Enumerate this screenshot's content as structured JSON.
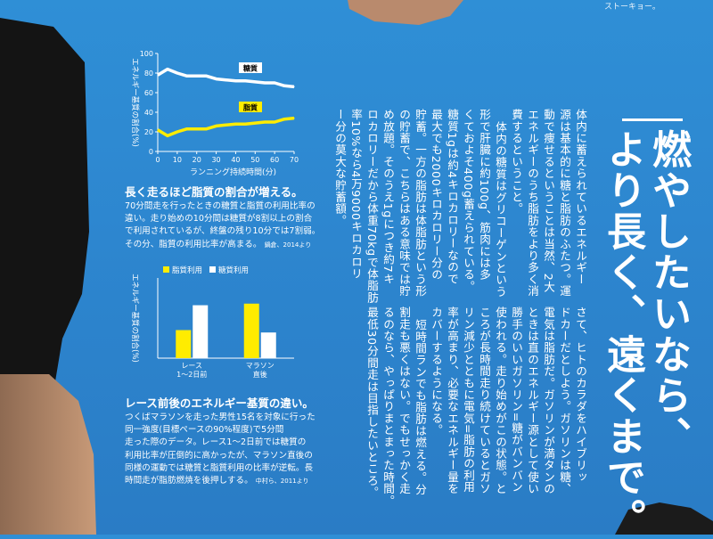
{
  "top_right_snippet": "ストーキョー。",
  "headline": {
    "line1": "燃やしたいなら、",
    "line2": "より長く、遠くまで。"
  },
  "body_columns": [
    "体内に蓄えられているエネルギー",
    "源は基本的に糖と脂肪のふたつ。運",
    "動で痩せるということは当然、2大",
    "エネルギーのうち脂肪をより多く消",
    "費するということ。",
    "体内の糖質はグリコーゲンという",
    "形で肝臓に約100g、筋肉には多",
    "くておよそ400g蓄えられている。",
    "糖質1gは約4キロカロリーなので",
    "最大でも2000キロカロリー分の",
    "貯蓄。一方の脂肪は体脂肪という形",
    "の貯蓄で、こちらはある意味では貯",
    "め放題。そのうえ1gにつき約7キ",
    "ロカロリーだから体重70kgで体脂肪",
    "率10%なら4万9000キロカロリ",
    "ー分の莫大な貯蓄額。",
    "さて、ヒトのカラダをハイブリッ",
    "ドカーだとしよう。ガソリンは糖、",
    "電気は脂肪だ。ガソリンが満タンの",
    "ときは直のエネルギー源として使い",
    "勝手のいいガソリン=糖がバンバン",
    "使われる。走り始めがこの状態。と",
    "ころが長時間走り続けているとガソ",
    "リン減少とともに電気=脂肪の利用",
    "率が高まり、必要なエネルギー量を",
    "カバーするようになる。",
    "短時間ランでも脂肪は燃える。分",
    "割走も悪くはない。でもせっかく走",
    "るのなら、やっぱりまとまった時間。",
    "最低30分間走は目指したいところ。"
  ],
  "chart_data": [
    {
      "type": "line",
      "ylabel": "エネルギー基質の割合(%)",
      "xlabel": "ランニング持続時間(分)",
      "x": [
        0,
        5,
        10,
        15,
        20,
        25,
        30,
        35,
        40,
        45,
        50,
        55,
        60,
        65,
        70
      ],
      "x_ticks": [
        "0",
        "10",
        "20",
        "30",
        "40",
        "50",
        "60",
        "70"
      ],
      "y_ticks": [
        "0",
        "20",
        "40",
        "60",
        "80",
        "100"
      ],
      "ylim": [
        0,
        100
      ],
      "xlim": [
        0,
        70
      ],
      "series": [
        {
          "name": "糖質",
          "color": "#ffffff",
          "values": [
            78,
            84,
            80,
            77,
            77,
            77,
            74,
            73,
            72,
            72,
            71,
            70,
            70,
            67,
            66
          ]
        },
        {
          "name": "脂質",
          "color": "#ffec00",
          "values": [
            22,
            16,
            20,
            23,
            23,
            23,
            26,
            27,
            28,
            28,
            29,
            30,
            30,
            33,
            34
          ]
        }
      ],
      "caption_title": "長く走るほど脂質の割合が増える。",
      "caption_lines": [
        "70分間走を行ったときの糖質と脂質の利用比率の",
        "違い。走り始めの10分間は糖質が8割以上の割合",
        "で利用されているが、終盤の残り10分では7割弱。",
        "その分、脂質の利用比率が高まる。"
      ],
      "caption_source": "鍋倉、2014より"
    },
    {
      "type": "bar",
      "ylabel": "エネルギー基質の割合(%)",
      "categories": [
        "レース\n1〜2日前",
        "マラソン\n直後"
      ],
      "category_lines": [
        [
          "レース",
          "1〜2日前"
        ],
        [
          "マラソン",
          "直後"
        ]
      ],
      "series": [
        {
          "name": "脂質利用",
          "color": "#ffec00",
          "values": [
            35,
            68
          ]
        },
        {
          "name": "糖質利用",
          "color": "#ffffff",
          "values": [
            66,
            32
          ]
        }
      ],
      "ylim": [
        0,
        100
      ],
      "legend": "top",
      "caption_title": "レース前後のエネルギー基質の違い。",
      "caption_lines": [
        "つくばマラソンを走った男性15名を対象に行った",
        "同一強度(目標ペースの90%程度)で5分間",
        "走った際のデータ。レース1〜2日前では糖質の",
        "利用比率が圧倒的に高かったが、マラソン直後の",
        "同様の運動では糖質と脂質利用の比率が逆転。長",
        "時間走が脂肪燃焼を後押しする。"
      ],
      "caption_source": "中村ら、2011より"
    }
  ]
}
